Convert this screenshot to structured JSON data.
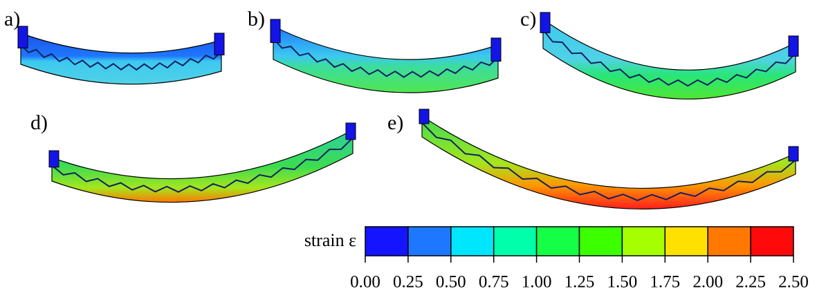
{
  "panels": [
    {
      "label": "a)"
    },
    {
      "label": "b)"
    },
    {
      "label": "c)"
    },
    {
      "label": "d)"
    },
    {
      "label": "e)"
    }
  ],
  "colorbar": {
    "label": "strain ε",
    "ticks": [
      {
        "value": 0,
        "label": "0.00"
      },
      {
        "value": 0.25,
        "label": "0.25"
      },
      {
        "value": 0.5,
        "label": "0.50"
      },
      {
        "value": 0.75,
        "label": "0.75"
      },
      {
        "value": 1,
        "label": "1.00"
      },
      {
        "value": 1.25,
        "label": "1.25"
      },
      {
        "value": 1.5,
        "label": "1.50"
      },
      {
        "value": 1.75,
        "label": "1.75"
      },
      {
        "value": 2,
        "label": "2.00"
      },
      {
        "value": 2.25,
        "label": "2.25"
      },
      {
        "value": 2.5,
        "label": "2.50"
      }
    ],
    "colors": [
      "#1414ff",
      "#1e78ff",
      "#00e6ff",
      "#00ffaa",
      "#14ff46",
      "#3cff00",
      "#a5ff00",
      "#ffe100",
      "#ff7800",
      "#ff0a0a"
    ]
  }
}
